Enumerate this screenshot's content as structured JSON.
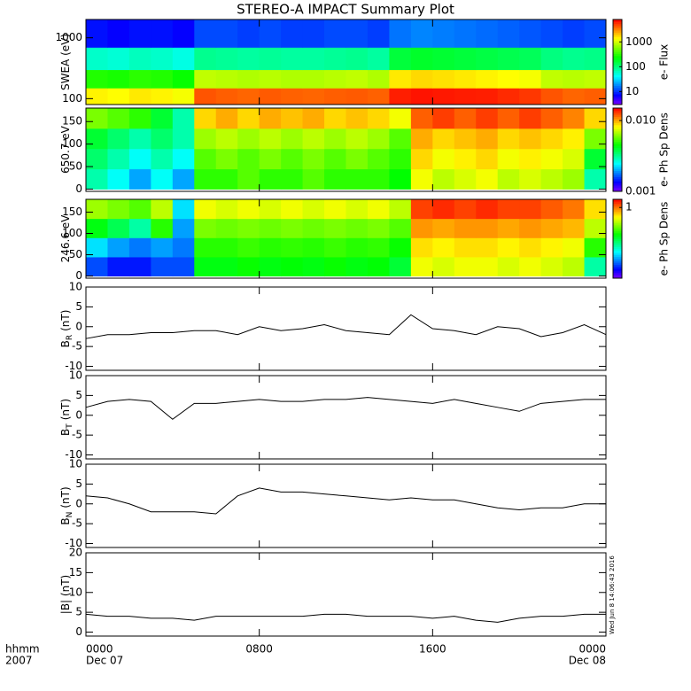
{
  "chart_data": [
    {
      "type": "heatmap",
      "title": "STEREO-A IMPACT Summary Plot",
      "ylabel": "SWEA (eV)",
      "x": [
        0.5,
        1.5,
        2.5,
        3.5,
        4.5,
        5.5,
        6.5,
        7.5,
        8.5,
        9.5,
        10.5,
        11.5,
        12.5,
        13.5,
        14.5,
        15.5,
        16.5,
        17.5,
        18.5,
        19.5,
        20.5,
        21.5,
        22.5,
        23.5
      ],
      "ybins": [
        80,
        150,
        300,
        700,
        2000
      ],
      "values": [
        [
          1500,
          1400,
          1600,
          1500,
          1300,
          4500,
          4200,
          4000,
          4300,
          4100,
          4000,
          4200,
          4300,
          4100,
          6500,
          7000,
          6800,
          6600,
          6500,
          6000,
          5500,
          4500,
          4000,
          4200
        ],
        [
          300,
          280,
          320,
          300,
          250,
          900,
          850,
          800,
          850,
          800,
          800,
          850,
          900,
          800,
          1600,
          1800,
          1700,
          1600,
          1500,
          1400,
          1300,
          900,
          850,
          900
        ],
        [
          60,
          55,
          65,
          60,
          50,
          90,
          85,
          80,
          85,
          80,
          80,
          85,
          90,
          80,
          160,
          180,
          170,
          160,
          150,
          140,
          130,
          100,
          90,
          95
        ],
        [
          8,
          7,
          8,
          8,
          7,
          12,
          12,
          11,
          12,
          11,
          11,
          12,
          12,
          11,
          16,
          18,
          17,
          16,
          15,
          14,
          13,
          12,
          11,
          12
        ]
      ],
      "ylim": [
        80,
        2000
      ],
      "yticks": [
        100,
        1000
      ],
      "ylog": true,
      "colorbar": {
        "label": "e- Flux",
        "lim": [
          3,
          8000
        ],
        "ticks": [
          10,
          100,
          1000
        ],
        "log": true
      }
    },
    {
      "type": "heatmap",
      "ylabel": "650.7 eV",
      "x": [
        0.5,
        1.5,
        2.5,
        3.5,
        4.5,
        5.5,
        6.5,
        7.5,
        8.5,
        9.5,
        10.5,
        11.5,
        12.5,
        13.5,
        14.5,
        15.5,
        16.5,
        17.5,
        18.5,
        19.5,
        20.5,
        21.5,
        22.5,
        23.5
      ],
      "ybins": [
        0,
        45,
        90,
        135,
        180
      ],
      "values": [
        [
          0.003,
          0.0025,
          0.002,
          0.0025,
          0.002,
          0.005,
          0.005,
          0.0055,
          0.005,
          0.005,
          0.0055,
          0.005,
          0.005,
          0.005,
          0.0045,
          0.008,
          0.007,
          0.0075,
          0.008,
          0.007,
          0.0075,
          0.007,
          0.0065,
          0.003
        ],
        [
          0.0035,
          0.003,
          0.0025,
          0.003,
          0.0025,
          0.0055,
          0.006,
          0.0055,
          0.006,
          0.0055,
          0.006,
          0.0055,
          0.006,
          0.0055,
          0.005,
          0.009,
          0.008,
          0.0085,
          0.009,
          0.008,
          0.0085,
          0.008,
          0.0075,
          0.004
        ],
        [
          0.004,
          0.0035,
          0.003,
          0.0035,
          0.003,
          0.0065,
          0.007,
          0.0065,
          0.007,
          0.0065,
          0.007,
          0.0065,
          0.007,
          0.0065,
          0.0055,
          0.01,
          0.009,
          0.0095,
          0.01,
          0.009,
          0.0095,
          0.009,
          0.0085,
          0.006
        ],
        [
          0.006,
          0.0055,
          0.005,
          0.004,
          0.003,
          0.009,
          0.01,
          0.009,
          0.01,
          0.0095,
          0.01,
          0.009,
          0.0095,
          0.009,
          0.008,
          0.012,
          0.013,
          0.012,
          0.013,
          0.012,
          0.013,
          0.012,
          0.011,
          0.009
        ]
      ],
      "ylim": [
        -5,
        180
      ],
      "yticks": [
        0,
        50,
        100,
        150
      ],
      "colorbar": {
        "label": "e- Ph Sp Dens",
        "lim": [
          0.001,
          0.015
        ],
        "ticks": [
          0.001,
          {
            "value": 0.01,
            "label": "0.010"
          }
        ],
        "log": true
      }
    },
    {
      "type": "heatmap",
      "ylabel": "246.6 eV",
      "x": [
        0.5,
        1.5,
        2.5,
        3.5,
        4.5,
        5.5,
        6.5,
        7.5,
        8.5,
        9.5,
        10.5,
        11.5,
        12.5,
        13.5,
        14.5,
        15.5,
        16.5,
        17.5,
        18.5,
        19.5,
        20.5,
        21.5,
        22.5,
        23.5
      ],
      "ybins": [
        0,
        45,
        90,
        135,
        180
      ],
      "values": [
        [
          0.06,
          0.05,
          0.05,
          0.06,
          0.06,
          0.25,
          0.25,
          0.27,
          0.25,
          0.26,
          0.25,
          0.27,
          0.25,
          0.26,
          0.22,
          0.6,
          0.55,
          0.6,
          0.6,
          0.55,
          0.6,
          0.55,
          0.5,
          0.15
        ],
        [
          0.1,
          0.08,
          0.07,
          0.08,
          0.07,
          0.3,
          0.3,
          0.32,
          0.3,
          0.31,
          0.3,
          0.32,
          0.3,
          0.31,
          0.27,
          0.7,
          0.65,
          0.7,
          0.7,
          0.65,
          0.7,
          0.65,
          0.6,
          0.3
        ],
        [
          0.25,
          0.2,
          0.15,
          0.3,
          0.08,
          0.4,
          0.38,
          0.4,
          0.38,
          0.4,
          0.38,
          0.4,
          0.38,
          0.4,
          0.35,
          0.9,
          0.85,
          0.9,
          0.9,
          0.85,
          0.9,
          0.85,
          0.8,
          0.5
        ],
        [
          0.45,
          0.4,
          0.35,
          0.5,
          0.1,
          0.6,
          0.55,
          0.6,
          0.55,
          0.6,
          0.55,
          0.6,
          0.55,
          0.6,
          0.5,
          1.2,
          1.3,
          1.2,
          1.3,
          1.2,
          1.2,
          1.1,
          1.0,
          0.7
        ]
      ],
      "ylim": [
        -5,
        180
      ],
      "yticks": [
        0,
        50,
        100,
        150
      ],
      "colorbar": {
        "label": "e- Ph Sp Dens",
        "lim": [
          0.03,
          1.5
        ],
        "ticks": [
          1
        ],
        "log": true
      }
    },
    {
      "type": "line",
      "ylabel": "B",
      "ylabel_sub": "R",
      "ylabel_unit": "(nT)",
      "color": "#000000",
      "x": [
        0,
        1,
        2,
        3,
        4,
        5,
        6,
        7,
        8,
        9,
        10,
        11,
        12,
        13,
        14,
        15,
        16,
        17,
        18,
        19,
        20,
        21,
        22,
        23,
        24
      ],
      "values": [
        -3,
        -2,
        -2,
        -1.5,
        -1.5,
        -1,
        -1,
        -2,
        0,
        -1,
        -0.5,
        0.5,
        -1,
        -1.5,
        -2,
        3,
        -0.5,
        -1,
        -2,
        0,
        -0.5,
        -2.5,
        -1.5,
        0.5,
        -2
      ],
      "ylim": [
        -11,
        10
      ],
      "yticks": [
        -10,
        -5,
        0,
        5,
        10
      ]
    },
    {
      "type": "line",
      "ylabel": "B",
      "ylabel_sub": "T",
      "ylabel_unit": "(nT)",
      "color": "#000000",
      "x": [
        0,
        1,
        2,
        3,
        4,
        5,
        6,
        7,
        8,
        9,
        10,
        11,
        12,
        13,
        14,
        15,
        16,
        17,
        18,
        19,
        20,
        21,
        22,
        23,
        24
      ],
      "values": [
        2,
        3.5,
        4,
        3.5,
        -1,
        3,
        3,
        3.5,
        4,
        3.5,
        3.5,
        4,
        4,
        4.5,
        4,
        3.5,
        3,
        4,
        3,
        2,
        1,
        3,
        3.5,
        4,
        4
      ],
      "ylim": [
        -11,
        10
      ],
      "yticks": [
        -10,
        -5,
        0,
        5,
        10
      ]
    },
    {
      "type": "line",
      "ylabel": "B",
      "ylabel_sub": "N",
      "ylabel_unit": "(nT)",
      "color": "#000000",
      "x": [
        0,
        1,
        2,
        3,
        4,
        5,
        6,
        7,
        8,
        9,
        10,
        11,
        12,
        13,
        14,
        15,
        16,
        17,
        18,
        19,
        20,
        21,
        22,
        23,
        24
      ],
      "values": [
        2,
        1.5,
        0,
        -2,
        -2,
        -2,
        -2.5,
        2,
        4,
        3,
        3,
        2.5,
        2,
        1.5,
        1,
        1.5,
        1,
        1,
        0,
        -1,
        -1.5,
        -1,
        -1,
        0,
        0
      ],
      "ylim": [
        -11,
        10
      ],
      "yticks": [
        -10,
        -5,
        0,
        5,
        10
      ]
    },
    {
      "type": "line",
      "ylabel": "|B| (nT)",
      "color": "#000000",
      "x": [
        0,
        1,
        2,
        3,
        4,
        5,
        6,
        7,
        8,
        9,
        10,
        11,
        12,
        13,
        14,
        15,
        16,
        17,
        18,
        19,
        20,
        21,
        22,
        23,
        24
      ],
      "values": [
        4.5,
        4,
        4,
        3.5,
        3.5,
        3,
        4,
        4,
        4,
        4,
        4,
        4.5,
        4.5,
        4,
        4,
        4,
        3.5,
        4,
        3,
        2.5,
        3.5,
        4,
        4,
        4.5,
        4.5
      ],
      "ylim": [
        -1,
        20
      ],
      "yticks": [
        0,
        5,
        10,
        15,
        20
      ],
      "xlim": [
        0,
        24
      ],
      "xticks": [
        {
          "value": 0,
          "label": "0000"
        },
        {
          "value": 8,
          "label": "0800"
        },
        {
          "value": 16,
          "label": "1600"
        },
        {
          "value": 24,
          "label": "0000"
        }
      ],
      "date_labels": [
        "Dec 07",
        "Dec 08"
      ],
      "xlabel": [
        "hhmm",
        "2007"
      ],
      "stamp": "Wed Jun  8 14:06:43 2016"
    }
  ]
}
